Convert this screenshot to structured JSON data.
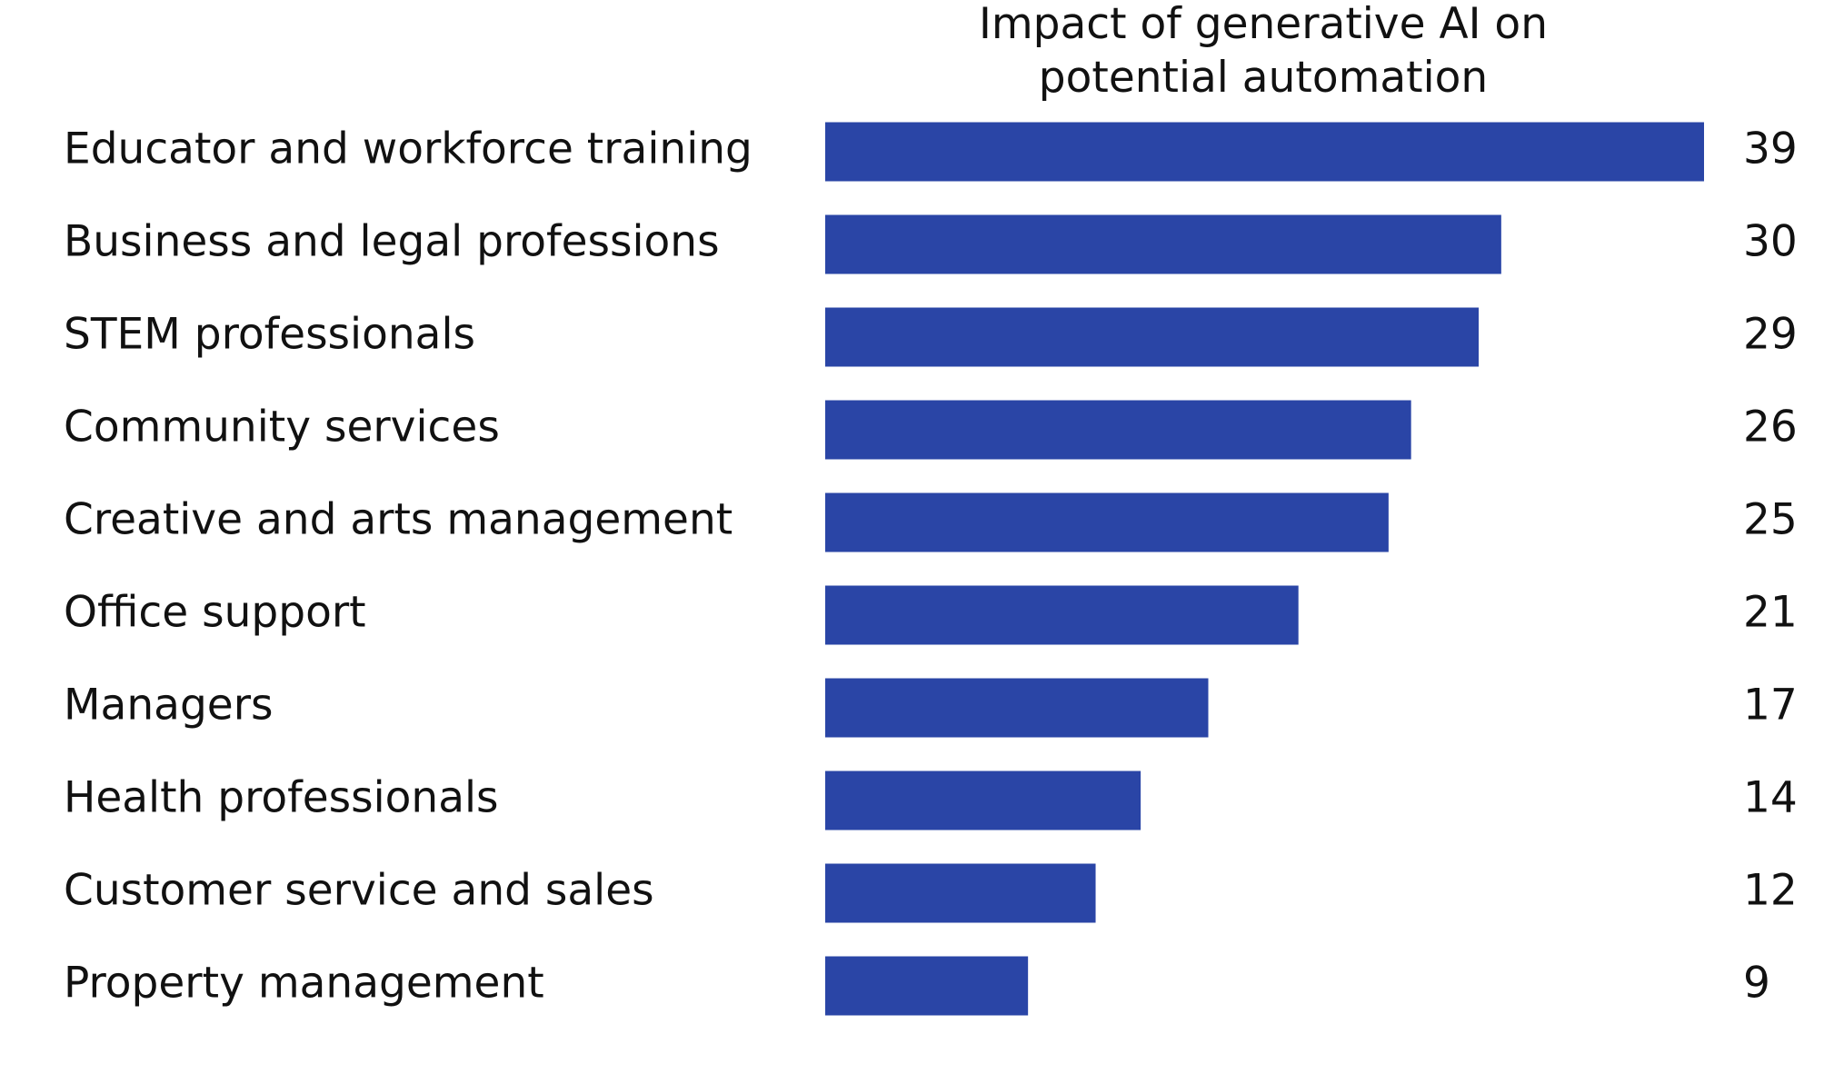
{
  "chart_data": {
    "type": "bar",
    "orientation": "horizontal",
    "title_lines": [
      "Impact of generative AI on",
      "potential automation"
    ],
    "categories": [
      "Educator and workforce training",
      "Business and legal professions",
      "STEM professionals",
      "Community services",
      "Creative and arts management",
      "Office support",
      "Managers",
      "Health professionals",
      "Customer service and sales",
      "Property management"
    ],
    "values": [
      39,
      30,
      29,
      26,
      25,
      21,
      17,
      14,
      12,
      9
    ],
    "value_labels": [
      "39",
      "30",
      "29",
      "26",
      "25",
      "21",
      "17",
      "14",
      "12",
      "9"
    ],
    "xlim": [
      0,
      39
    ],
    "grid": false,
    "legend": "none",
    "bar_color": "#2a45a6"
  }
}
